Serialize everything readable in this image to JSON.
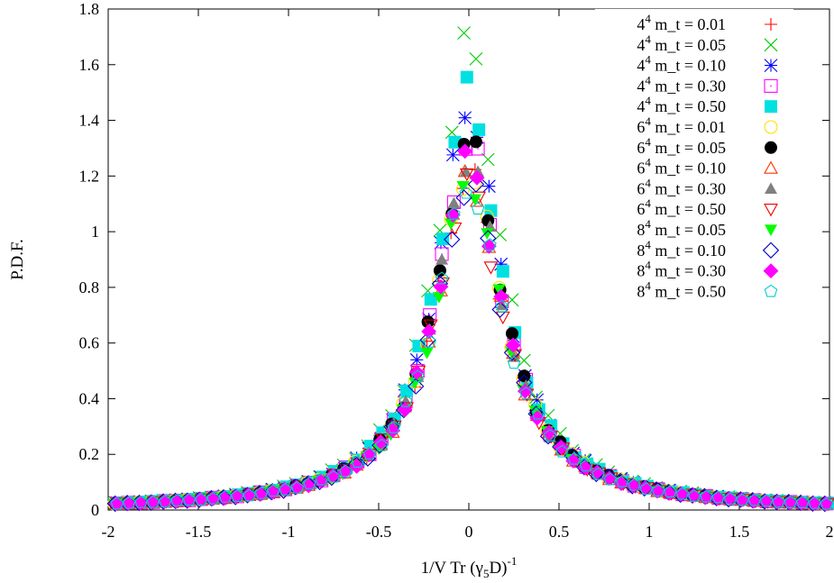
{
  "chart_data": {
    "type": "scatter",
    "title": "",
    "xlabel": {
      "main": "1/V Tr (γ",
      "sub": "5",
      "after": "D)",
      "sup": "-1"
    },
    "ylabel": "P.D.F.",
    "xlim": [
      -2,
      2
    ],
    "ylim": [
      0,
      1.8
    ],
    "xticks": [
      -2,
      -1.5,
      -1,
      -0.5,
      0,
      0.5,
      1,
      1.5,
      2
    ],
    "xtick_labels": [
      "-2",
      "-1.5",
      "-1",
      "-0.5",
      "0",
      "0.5",
      "1",
      "1.5",
      "2"
    ],
    "yticks": [
      0,
      0.2,
      0.4,
      0.6,
      0.8,
      1,
      1.2,
      1.4,
      1.6,
      1.8
    ],
    "ytick_labels": [
      "0",
      "0.2",
      "0.4",
      "0.6",
      "0.8",
      "1",
      "1.2",
      "1.4",
      "1.6",
      "1.8"
    ],
    "grid": false,
    "legend_position": "top-right",
    "bin_width": 0.0667,
    "series": [
      {
        "lattice": "4",
        "exp": "4",
        "mt": "m_t = 0.01",
        "name": "4^4 m_t = 0.01",
        "marker": "plus",
        "color": "#ff0000",
        "peak": 1.2,
        "scale": 0.225
      },
      {
        "lattice": "4",
        "exp": "4",
        "mt": "m_t = 0.05",
        "name": "4^4 m_t = 0.05",
        "marker": "cross",
        "color": "#00cc00",
        "peak": 1.66,
        "scale": 0.205
      },
      {
        "lattice": "4",
        "exp": "4",
        "mt": "m_t = 0.10",
        "name": "4^4 m_t = 0.10",
        "marker": "star",
        "color": "#0000ff",
        "peak": 1.43,
        "scale": 0.215
      },
      {
        "lattice": "4",
        "exp": "4",
        "mt": "m_t = 0.30",
        "name": "4^4 m_t = 0.30",
        "marker": "dotsquare",
        "color": "#ff00ff",
        "peak": 1.3,
        "scale": 0.22
      },
      {
        "lattice": "4",
        "exp": "4",
        "mt": "m_t = 0.50",
        "name": "4^4 m_t = 0.50",
        "marker": "filledsquare",
        "color": "#00e0e0",
        "peak": 1.48,
        "scale": 0.21
      },
      {
        "lattice": "6",
        "exp": "4",
        "mt": "m_t = 0.01",
        "name": "6^4 m_t = 0.01",
        "marker": "circle",
        "color": "#ffe000",
        "peak": 1.2,
        "scale": 0.23
      },
      {
        "lattice": "6",
        "exp": "4",
        "mt": "m_t = 0.05",
        "name": "6^4 m_t = 0.05",
        "marker": "filledcircle",
        "color": "#000000",
        "peak": 1.3,
        "scale": 0.22
      },
      {
        "lattice": "6",
        "exp": "4",
        "mt": "m_t = 0.10",
        "name": "6^4 m_t = 0.10",
        "marker": "triangle",
        "color": "#ff3300",
        "peak": 1.18,
        "scale": 0.225
      },
      {
        "lattice": "6",
        "exp": "4",
        "mt": "m_t = 0.30",
        "name": "6^4 m_t = 0.30",
        "marker": "filledtriangle",
        "color": "#808080",
        "peak": 1.25,
        "scale": 0.22
      },
      {
        "lattice": "6",
        "exp": "4",
        "mt": "m_t = 0.50",
        "name": "6^4 m_t = 0.50",
        "marker": "triangledown",
        "color": "#ee0000",
        "peak": 1.15,
        "scale": 0.23
      },
      {
        "lattice": "8",
        "exp": "4",
        "mt": "m_t = 0.05",
        "name": "8^4 m_t = 0.05",
        "marker": "filledtriangledown",
        "color": "#00ff00",
        "peak": 1.17,
        "scale": 0.225
      },
      {
        "lattice": "8",
        "exp": "4",
        "mt": "m_t = 0.10",
        "name": "8^4 m_t = 0.10",
        "marker": "diamond",
        "color": "#0000cc",
        "peak": 1.15,
        "scale": 0.23
      },
      {
        "lattice": "8",
        "exp": "4",
        "mt": "m_t = 0.30",
        "name": "8^4 m_t = 0.30",
        "marker": "filleddiamond",
        "color": "#ff00ff",
        "peak": 1.23,
        "scale": 0.22
      },
      {
        "lattice": "8",
        "exp": "4",
        "mt": "m_t = 0.50",
        "name": "8^4 m_t = 0.50",
        "marker": "pentagon",
        "color": "#00cccc",
        "peak": 1.15,
        "scale": 0.23
      }
    ]
  }
}
